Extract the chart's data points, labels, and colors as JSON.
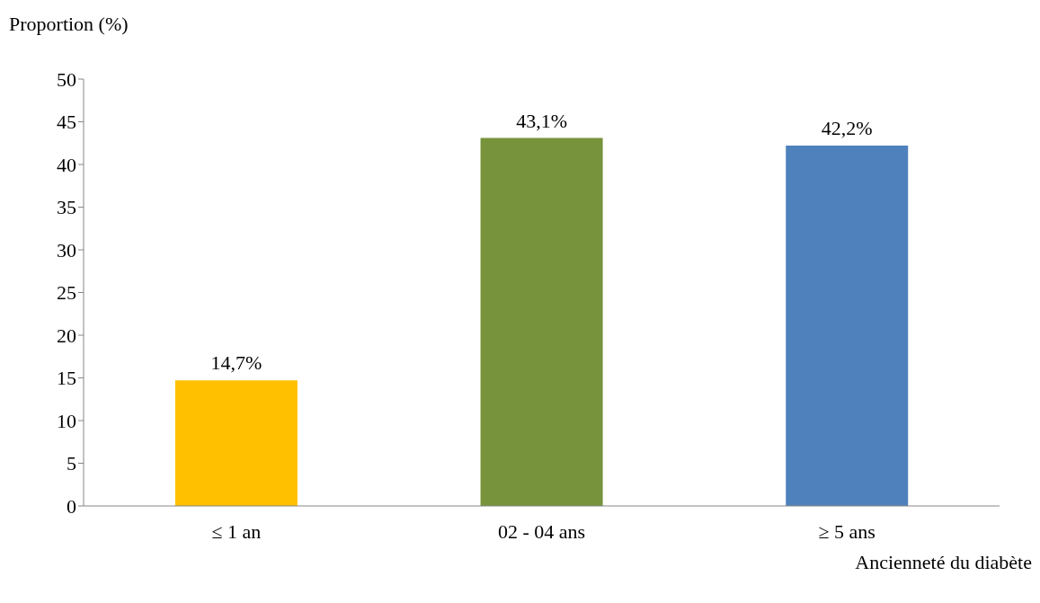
{
  "chart_data": {
    "type": "bar",
    "ylabel": "Proportion (%)",
    "xlabel": "Ancienneté du diabète",
    "categories": [
      "≤ 1 an",
      "02 - 04 ans",
      "≥ 5 ans"
    ],
    "values": [
      14.7,
      43.1,
      42.2
    ],
    "colors": [
      "#ffc000",
      "#77933c",
      "#4f81bd"
    ],
    "value_labels": [
      "14,7%",
      "43,1%",
      "42,2%"
    ],
    "ylim": [
      0,
      50
    ],
    "yticks": [
      0,
      5,
      10,
      15,
      20,
      25,
      30,
      35,
      40,
      45,
      50
    ],
    "grid": false,
    "legend": false
  }
}
